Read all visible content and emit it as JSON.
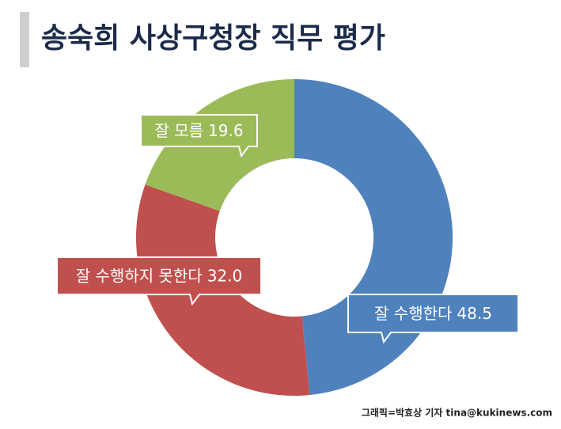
{
  "chart_data": {
    "type": "donut",
    "title": "송숙희 사상구청장 직무 평가",
    "categories": [
      "잘 수행한다",
      "잘 수행하지 못한다",
      "잘 모름"
    ],
    "values": [
      48.5,
      32.0,
      19.6
    ],
    "value_labels": [
      "48.5",
      "32.0",
      "19.6"
    ],
    "colors": [
      "#4f81bd",
      "#c0504d",
      "#9bbb59"
    ],
    "source": "그래픽=박효상 기자 tina@kukinews.com"
  }
}
